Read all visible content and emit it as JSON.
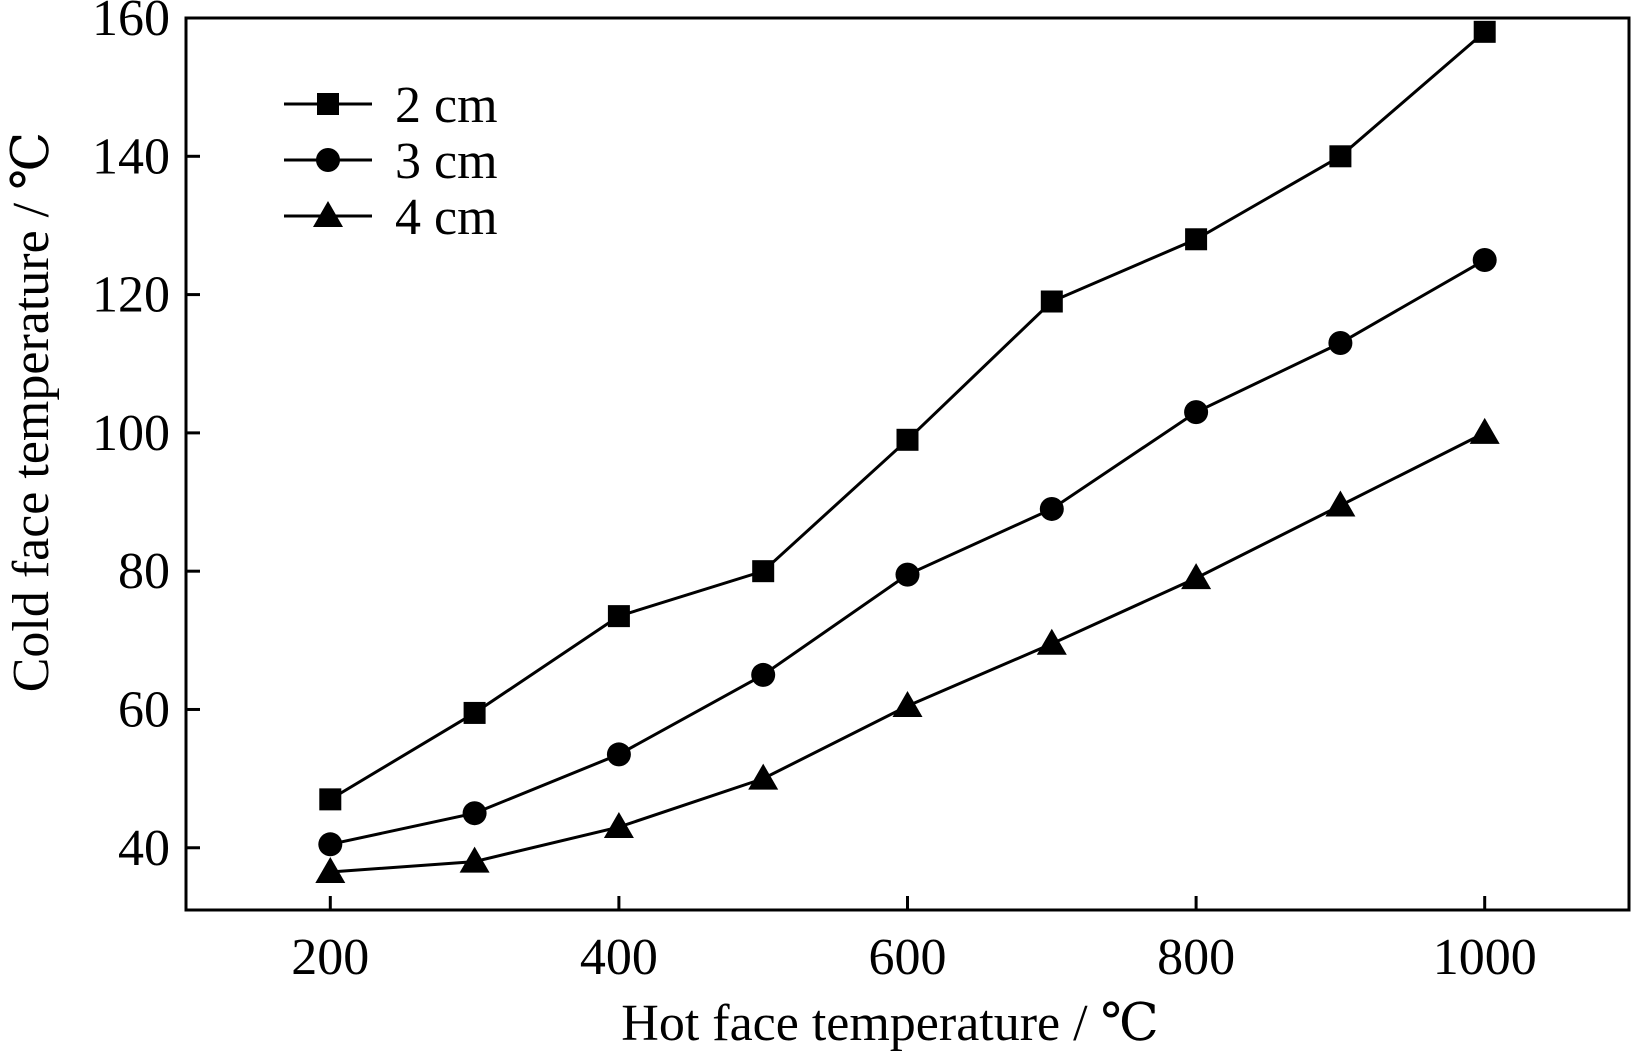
{
  "chart_data": {
    "type": "line",
    "xlabel": "Hot face temperature / ℃",
    "ylabel": "Cold face temperature / ℃",
    "xlim": [
      100,
      1100
    ],
    "ylim": [
      31,
      160
    ],
    "x_ticks": [
      200,
      400,
      600,
      800,
      1000
    ],
    "y_ticks": [
      40,
      60,
      80,
      100,
      120,
      140,
      160
    ],
    "x_tick_labels": [
      "200",
      "400",
      "600",
      "800",
      "1000"
    ],
    "y_tick_labels": [
      "40",
      "60",
      "80",
      "100",
      "120",
      "140",
      "160"
    ],
    "grid": false,
    "legend_position": "top-left",
    "x": [
      200,
      300,
      400,
      500,
      600,
      700,
      800,
      900,
      1000
    ],
    "series": [
      {
        "name": "2 cm",
        "marker": "square",
        "values": [
          47,
          59.5,
          73.5,
          80,
          99,
          119,
          128,
          140,
          158
        ]
      },
      {
        "name": "3 cm",
        "marker": "circle",
        "values": [
          40.5,
          45,
          53.5,
          65,
          79.5,
          89,
          103,
          113,
          125
        ]
      },
      {
        "name": "4 cm",
        "marker": "triangle",
        "values": [
          36.5,
          38,
          43,
          50,
          60.5,
          69.5,
          79,
          89.5,
          100
        ]
      }
    ],
    "colors": {
      "line": "#000000",
      "marker": "#000000"
    }
  }
}
